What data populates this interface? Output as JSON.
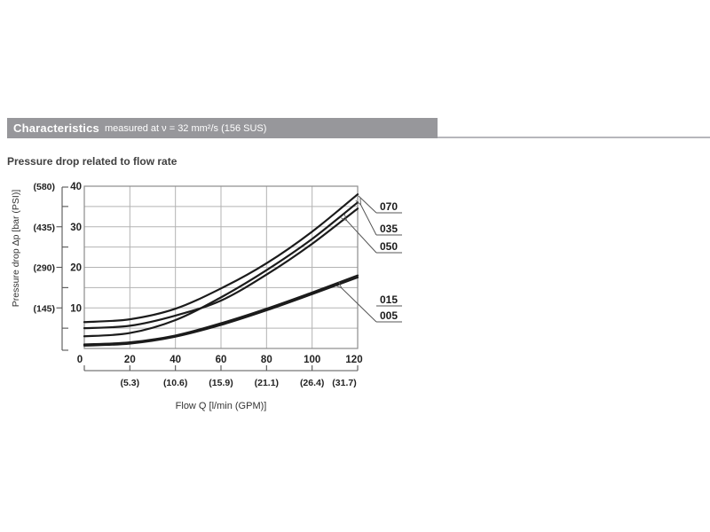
{
  "header": {
    "title": "Characteristics",
    "subtitle": "measured at ν = 32 mm²/s (156 SUS)",
    "bar_color": "#97979b"
  },
  "section_title": "Pressure drop related to flow rate",
  "chart_data": {
    "type": "line",
    "title": "Pressure drop related to flow rate",
    "xlabel": "Flow Q [l/min (GPM)]",
    "ylabel": "Pressure drop Δp [bar (PSI)]",
    "x": [
      0,
      20,
      40,
      60,
      80,
      100,
      120
    ],
    "x_tick_labels": [
      "0",
      "20",
      "40",
      "60",
      "80",
      "100",
      "120"
    ],
    "x_secondary_tick_labels": [
      "(5.3)",
      "(10.6)",
      "(15.9)",
      "(21.1)",
      "(26.4)",
      "(31.7)"
    ],
    "xlim": [
      0,
      120
    ],
    "ylim": [
      0,
      40
    ],
    "y_ticks": [
      10,
      20,
      30,
      40
    ],
    "y_tick_labels": [
      "10",
      "20",
      "30",
      "40"
    ],
    "y_secondary_tick_labels": [
      "(145)",
      "(290)",
      "(435)",
      "(580)"
    ],
    "grid": true,
    "grid_step_x": 20,
    "grid_step_y": 5,
    "line_color": "#1b1b1b",
    "series": [
      {
        "name": "070",
        "values": [
          6.5,
          7.2,
          9.8,
          14.8,
          21.0,
          28.8,
          38.0
        ]
      },
      {
        "name": "035",
        "values": [
          3.0,
          3.8,
          7.0,
          12.6,
          19.3,
          27.0,
          36.0
        ]
      },
      {
        "name": "050",
        "values": [
          5.0,
          5.6,
          8.1,
          11.8,
          18.2,
          25.8,
          34.5
        ]
      },
      {
        "name": "015",
        "values": [
          1.0,
          1.5,
          3.2,
          6.2,
          9.8,
          13.8,
          18.0
        ]
      },
      {
        "name": "005",
        "values": [
          0.7,
          1.2,
          2.9,
          5.8,
          9.4,
          13.4,
          17.5
        ]
      }
    ],
    "legend_position": "right-annotations",
    "annotation_labels": [
      "070",
      "035",
      "050",
      "015",
      "005"
    ]
  }
}
